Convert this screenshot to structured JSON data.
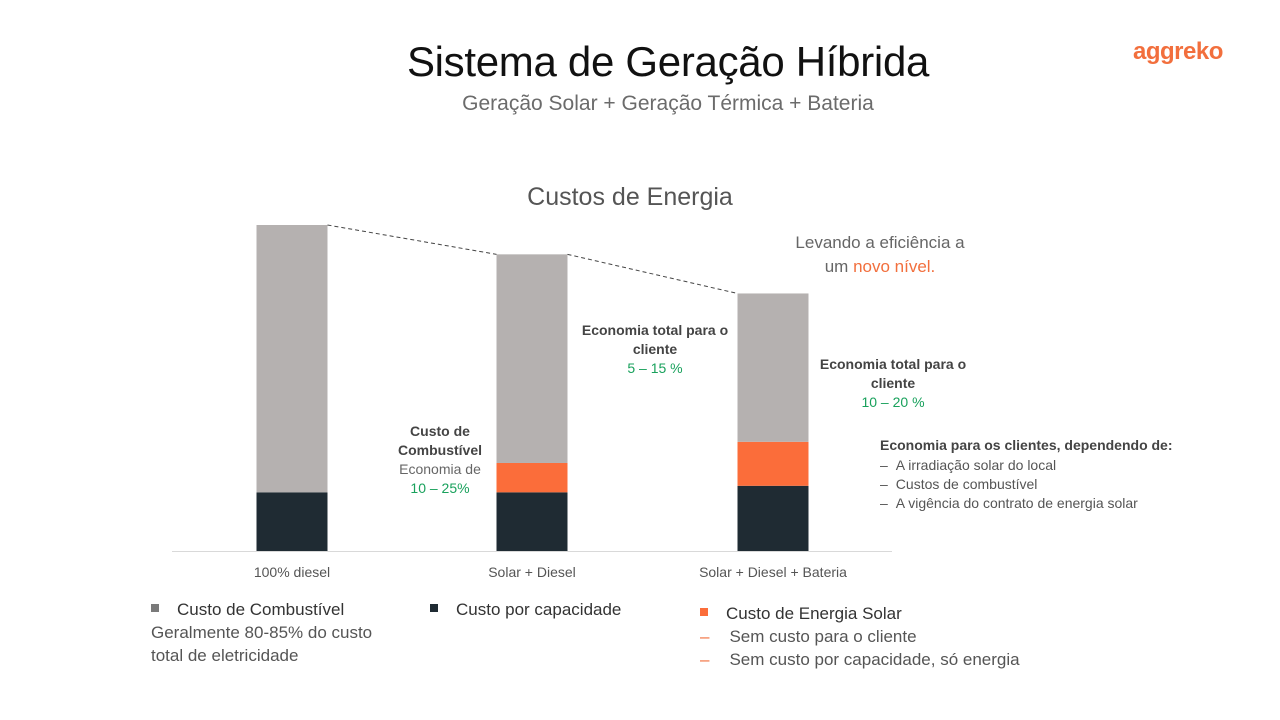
{
  "header": {
    "title": "Sistema de Geração Híbrida",
    "subtitle": "Geração Solar + Geração Térmica + Bateria",
    "logo": "aggreko"
  },
  "colors": {
    "fuel": "#b5b1b0",
    "capacity": "#1f2b33",
    "solar": "#fb6d3a",
    "green": "#19a15c",
    "brand": "#f26f3d"
  },
  "chart_data": {
    "type": "bar",
    "stacked": true,
    "title": "Custos de Energia",
    "categories": [
      "100% diesel",
      "Solar + Diesel",
      "Solar + Diesel + Bateria"
    ],
    "series": [
      {
        "name": "Custo por capacidade",
        "values": [
          18,
          18,
          20
        ]
      },
      {
        "name": "Custo de Energia Solar",
        "values": [
          0,
          9,
          13.5
        ]
      },
      {
        "name": "Custo de Combustível",
        "values": [
          82,
          64,
          45.5
        ]
      }
    ],
    "ylim": [
      0,
      100
    ],
    "trend_line": "dashed line connecting bar tops",
    "y_axis_visible": false
  },
  "annotations": {
    "fuel": {
      "title": "Custo de Combustível",
      "label": "Economia de",
      "value": "10 – 25%"
    },
    "eco1": {
      "title": "Economia total para o cliente",
      "value": "5 – 15 %"
    },
    "eco2": {
      "title": "Economia total para o cliente",
      "value": "10 – 20 %"
    },
    "lev": {
      "line1": "Levando a eficiência a",
      "line2_pre": "um",
      "line2_hl": "novo nível."
    },
    "depends": {
      "head": "Economia para os clientes, dependendo de:",
      "items": [
        "A irradiação solar do local",
        "Custos de combustível",
        "A vigência do contrato de energia solar"
      ]
    }
  },
  "legend": {
    "fuel": {
      "title": "Custo de Combustível",
      "line1": "Geralmente 80-85% do custo",
      "line2": "total de eletricidade"
    },
    "capacity": {
      "title": "Custo por capacidade"
    },
    "solar": {
      "title": "Custo de Energia Solar",
      "items": [
        "Sem custo para o cliente",
        "Sem custo por capacidade, só energia"
      ]
    }
  }
}
